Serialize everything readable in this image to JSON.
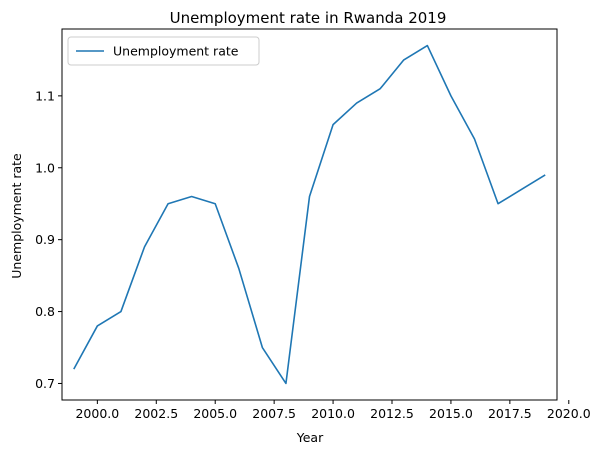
{
  "chart_data": {
    "type": "line",
    "title": "Unemployment rate in Rwanda 2019",
    "xlabel": "Year",
    "ylabel": "Unemployment rate",
    "xlim": [
      1998.5,
      2019.5
    ],
    "ylim": [
      0.677,
      1.193
    ],
    "x_ticks": [
      2000.0,
      2002.5,
      2005.0,
      2007.5,
      2010.0,
      2012.5,
      2015.0,
      2017.5,
      2020.0
    ],
    "x_tick_labels": [
      "2000.0",
      "2002.5",
      "2005.0",
      "2007.5",
      "2010.0",
      "2012.5",
      "2015.0",
      "2017.5",
      "2020.0"
    ],
    "y_ticks": [
      0.7,
      0.8,
      0.9,
      1.0,
      1.1
    ],
    "y_tick_labels": [
      "0.7",
      "0.8",
      "0.9",
      "1.0",
      "1.1"
    ],
    "grid": false,
    "legend_position": "upper-left",
    "series": [
      {
        "name": "Unemployment rate",
        "color": "#1f77b4",
        "x": [
          1999,
          2000,
          2001,
          2002,
          2003,
          2004,
          2005,
          2006,
          2007,
          2008,
          2009,
          2010,
          2011,
          2012,
          2013,
          2014,
          2015,
          2016,
          2017,
          2018,
          2019
        ],
        "y": [
          0.72,
          0.78,
          0.8,
          0.89,
          0.95,
          0.96,
          0.95,
          0.86,
          0.75,
          0.7,
          0.96,
          1.06,
          1.09,
          1.11,
          1.15,
          1.17,
          1.1,
          1.04,
          0.95,
          0.97,
          0.99
        ]
      }
    ]
  }
}
